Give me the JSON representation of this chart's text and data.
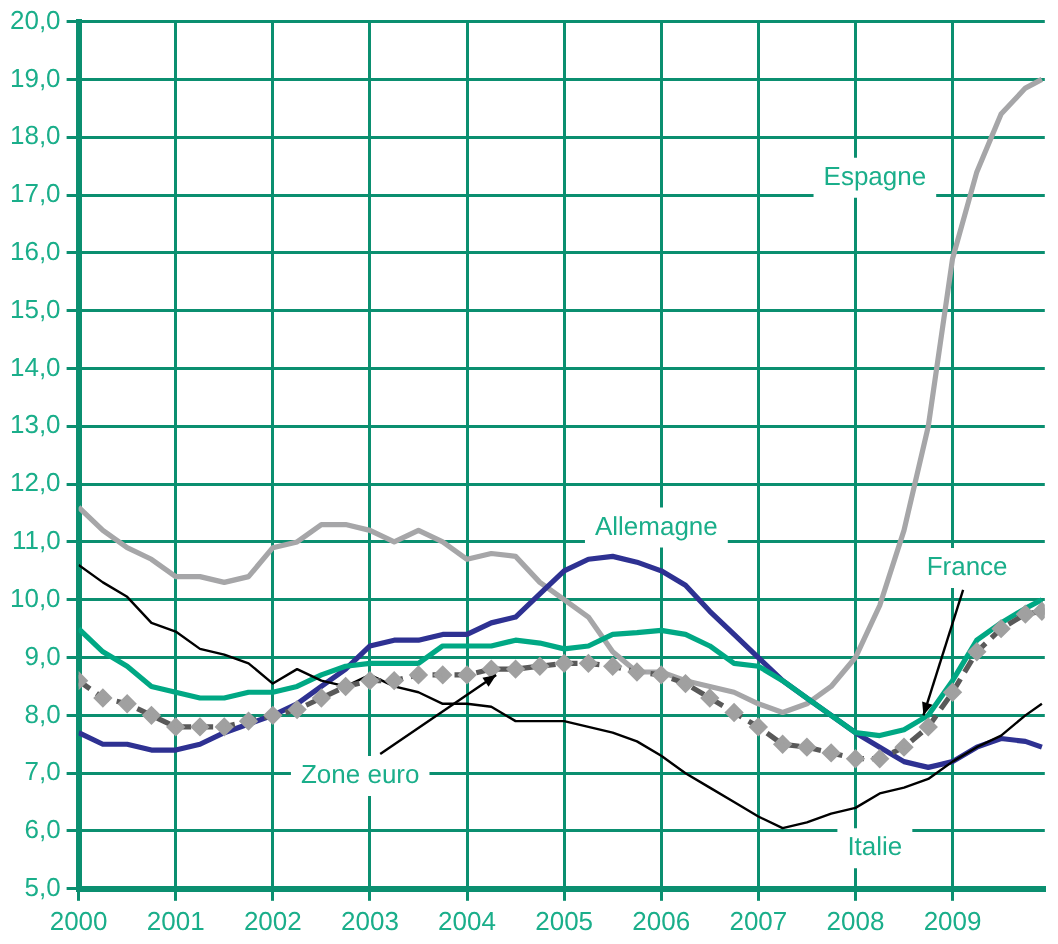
{
  "chart_data": {
    "type": "line",
    "x": [
      2000,
      2000.25,
      2000.5,
      2000.75,
      2001,
      2001.25,
      2001.5,
      2001.75,
      2002,
      2002.25,
      2002.5,
      2002.75,
      2003,
      2003.25,
      2003.5,
      2003.75,
      2004,
      2004.25,
      2004.5,
      2004.75,
      2005,
      2005.25,
      2005.5,
      2005.75,
      2006,
      2006.25,
      2006.5,
      2006.75,
      2007,
      2007.25,
      2007.5,
      2007.75,
      2008,
      2008.25,
      2008.5,
      2008.75,
      2009,
      2009.25,
      2009.5,
      2009.75,
      2009.92
    ],
    "series": [
      {
        "name": "Espagne",
        "color": "#a6a6a8",
        "values": [
          11.6,
          11.2,
          10.9,
          10.7,
          10.4,
          10.4,
          10.3,
          10.4,
          10.9,
          11.0,
          11.3,
          11.3,
          11.2,
          11.0,
          11.2,
          11.0,
          10.7,
          10.8,
          10.75,
          10.3,
          10.0,
          9.7,
          9.1,
          8.75,
          8.75,
          8.6,
          8.5,
          8.4,
          8.2,
          8.05,
          8.2,
          8.5,
          9.0,
          9.9,
          11.2,
          13.0,
          15.9,
          17.4,
          18.4,
          18.85,
          19.0
        ]
      },
      {
        "name": "Allemagne",
        "color": "#2e3192",
        "values": [
          7.7,
          7.5,
          7.5,
          7.4,
          7.4,
          7.5,
          7.7,
          7.85,
          8.0,
          8.2,
          8.5,
          8.8,
          9.2,
          9.3,
          9.3,
          9.4,
          9.4,
          9.6,
          9.7,
          10.1,
          10.5,
          10.7,
          10.75,
          10.65,
          10.5,
          10.25,
          9.8,
          9.4,
          9.0,
          8.6,
          8.3,
          8.0,
          7.7,
          7.45,
          7.2,
          7.1,
          7.2,
          7.45,
          7.6,
          7.55,
          7.45
        ]
      },
      {
        "name": "France",
        "color": "#00a884",
        "values": [
          9.5,
          9.1,
          8.85,
          8.5,
          8.4,
          8.3,
          8.3,
          8.4,
          8.4,
          8.5,
          8.7,
          8.85,
          8.9,
          8.9,
          8.9,
          9.2,
          9.2,
          9.2,
          9.3,
          9.25,
          9.15,
          9.2,
          9.4,
          9.43,
          9.47,
          9.4,
          9.2,
          8.9,
          8.85,
          8.6,
          8.3,
          8.0,
          7.7,
          7.65,
          7.75,
          8.0,
          8.6,
          9.3,
          9.6,
          9.85,
          10.0
        ]
      },
      {
        "name": "Italie",
        "color": "#000000",
        "values": [
          10.6,
          10.3,
          10.05,
          9.6,
          9.45,
          9.15,
          9.05,
          8.9,
          8.55,
          8.8,
          8.6,
          8.5,
          8.7,
          8.5,
          8.4,
          8.2,
          8.2,
          8.15,
          7.9,
          7.9,
          7.9,
          7.8,
          7.7,
          7.55,
          7.3,
          7.0,
          6.75,
          6.5,
          6.25,
          6.05,
          6.15,
          6.3,
          6.4,
          6.65,
          6.75,
          6.9,
          7.2,
          7.45,
          7.65,
          8.0,
          8.2
        ]
      },
      {
        "name": "Zone euro",
        "color": "#595959",
        "line_style": "dashed",
        "marker": "diamond",
        "values": [
          8.6,
          8.3,
          8.2,
          8.0,
          7.8,
          7.8,
          7.8,
          7.9,
          8.0,
          8.1,
          8.3,
          8.5,
          8.6,
          8.6,
          8.7,
          8.7,
          8.7,
          8.8,
          8.8,
          8.85,
          8.9,
          8.9,
          8.85,
          8.75,
          8.7,
          8.55,
          8.3,
          8.05,
          7.8,
          7.5,
          7.45,
          7.35,
          7.25,
          7.25,
          7.45,
          7.8,
          8.4,
          9.1,
          9.5,
          9.75,
          9.8
        ]
      }
    ],
    "xlim": [
      2000,
      2009.95
    ],
    "xticks": [
      2000,
      2001,
      2002,
      2003,
      2004,
      2005,
      2006,
      2007,
      2008,
      2009
    ],
    "ylim": [
      5,
      20
    ],
    "yticks": [
      {
        "value": 5,
        "label": "5,0"
      },
      {
        "value": 6,
        "label": "6,0"
      },
      {
        "value": 7,
        "label": "7,0"
      },
      {
        "value": 8,
        "label": "8,0"
      },
      {
        "value": 9,
        "label": "9,0"
      },
      {
        "value": 10,
        "label": "10,0"
      },
      {
        "value": 11,
        "label": "11,0"
      },
      {
        "value": 12,
        "label": "12,0"
      },
      {
        "value": 13,
        "label": "13,0"
      },
      {
        "value": 14,
        "label": "14,0"
      },
      {
        "value": 15,
        "label": "15,0"
      },
      {
        "value": 16,
        "label": "16,0"
      },
      {
        "value": 17,
        "label": "17,0"
      },
      {
        "value": 18,
        "label": "18,0"
      },
      {
        "value": 19,
        "label": "19,0"
      },
      {
        "value": 20,
        "label": "20,0"
      }
    ],
    "grid": true,
    "legend": false,
    "marker": "none",
    "line_style": "solid"
  }
}
